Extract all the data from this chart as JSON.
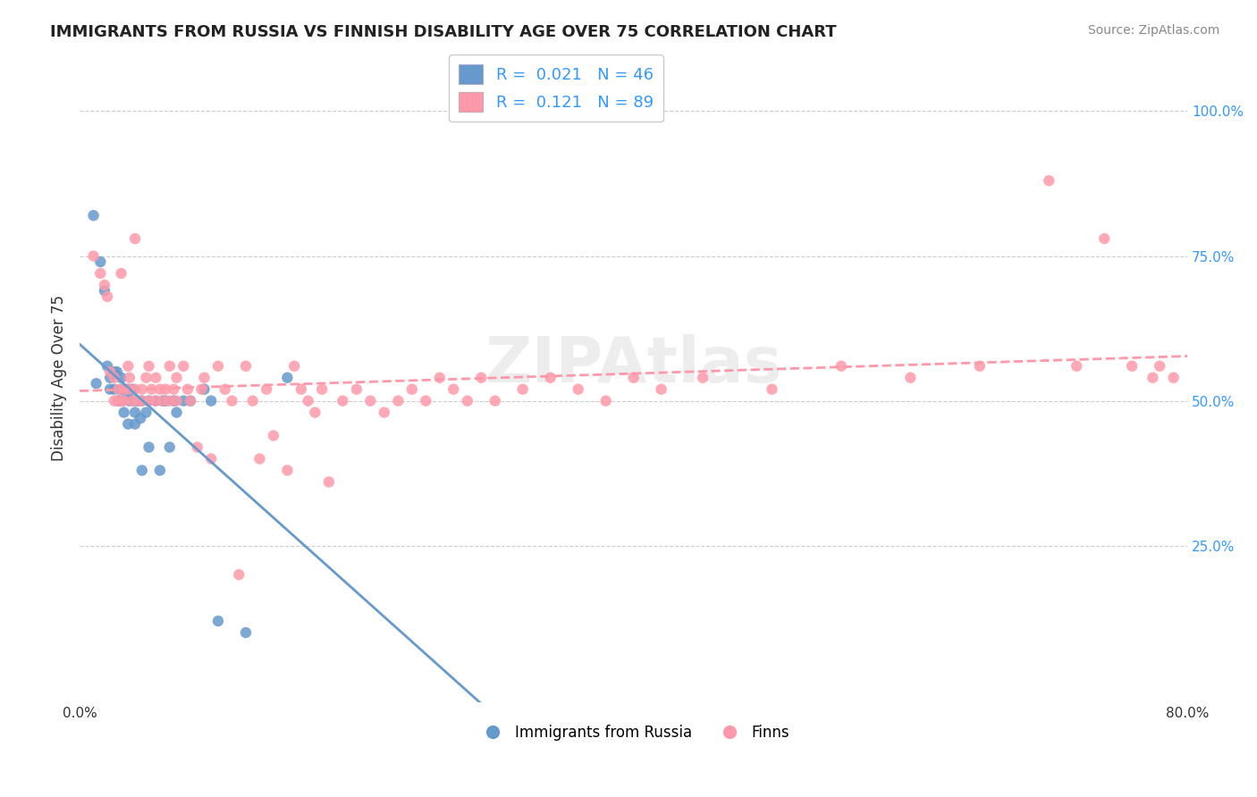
{
  "title": "IMMIGRANTS FROM RUSSIA VS FINNISH DISABILITY AGE OVER 75 CORRELATION CHART",
  "source": "Source: ZipAtlas.com",
  "xlabel": "",
  "ylabel": "Disability Age Over 75",
  "xlim": [
    0.0,
    0.8
  ],
  "ylim": [
    0.0,
    1.1
  ],
  "xtick_labels": [
    "0.0%",
    "80.0%"
  ],
  "ytick_labels": [
    "25.0%",
    "50.0%",
    "75.0%",
    "100.0%"
  ],
  "ytick_positions": [
    0.25,
    0.5,
    0.75,
    1.0
  ],
  "watermark": "ZIPAtlas",
  "legend_r1": "R =  0.021   N = 46",
  "legend_r2": "R =  0.121   N = 89",
  "color_blue": "#6699CC",
  "color_pink": "#FF99AA",
  "color_blue_line": "#6699CC",
  "color_pink_line": "#FF99AA",
  "background_color": "#FFFFFF",
  "grid_color": "#CCCCCC",
  "russia_x": [
    0.01,
    0.012,
    0.015,
    0.018,
    0.02,
    0.022,
    0.022,
    0.025,
    0.025,
    0.027,
    0.028,
    0.028,
    0.03,
    0.03,
    0.03,
    0.032,
    0.032,
    0.035,
    0.035,
    0.035,
    0.036,
    0.038,
    0.04,
    0.04,
    0.04,
    0.042,
    0.044,
    0.045,
    0.045,
    0.048,
    0.05,
    0.05,
    0.055,
    0.058,
    0.06,
    0.062,
    0.065,
    0.068,
    0.07,
    0.075,
    0.08,
    0.09,
    0.095,
    0.1,
    0.12,
    0.15
  ],
  "russia_y": [
    0.82,
    0.53,
    0.74,
    0.69,
    0.56,
    0.54,
    0.52,
    0.55,
    0.52,
    0.55,
    0.5,
    0.5,
    0.54,
    0.52,
    0.5,
    0.52,
    0.48,
    0.51,
    0.52,
    0.46,
    0.5,
    0.52,
    0.5,
    0.48,
    0.46,
    0.5,
    0.47,
    0.5,
    0.38,
    0.48,
    0.5,
    0.42,
    0.5,
    0.38,
    0.5,
    0.5,
    0.42,
    0.5,
    0.48,
    0.5,
    0.5,
    0.52,
    0.5,
    0.12,
    0.1,
    0.54
  ],
  "finns_x": [
    0.01,
    0.015,
    0.018,
    0.02,
    0.022,
    0.025,
    0.025,
    0.028,
    0.028,
    0.03,
    0.03,
    0.032,
    0.032,
    0.035,
    0.035,
    0.036,
    0.038,
    0.04,
    0.04,
    0.042,
    0.045,
    0.045,
    0.048,
    0.05,
    0.05,
    0.052,
    0.055,
    0.055,
    0.058,
    0.06,
    0.062,
    0.065,
    0.065,
    0.068,
    0.07,
    0.07,
    0.075,
    0.078,
    0.08,
    0.085,
    0.088,
    0.09,
    0.095,
    0.1,
    0.105,
    0.11,
    0.115,
    0.12,
    0.125,
    0.13,
    0.135,
    0.14,
    0.15,
    0.155,
    0.16,
    0.165,
    0.17,
    0.175,
    0.18,
    0.19,
    0.2,
    0.21,
    0.22,
    0.23,
    0.24,
    0.25,
    0.26,
    0.27,
    0.28,
    0.29,
    0.3,
    0.32,
    0.34,
    0.36,
    0.38,
    0.4,
    0.42,
    0.45,
    0.5,
    0.55,
    0.6,
    0.65,
    0.7,
    0.72,
    0.74,
    0.76,
    0.775,
    0.78,
    0.79
  ],
  "finns_y": [
    0.75,
    0.72,
    0.7,
    0.68,
    0.55,
    0.54,
    0.5,
    0.52,
    0.5,
    0.72,
    0.5,
    0.52,
    0.5,
    0.56,
    0.52,
    0.54,
    0.5,
    0.52,
    0.78,
    0.5,
    0.52,
    0.5,
    0.54,
    0.56,
    0.5,
    0.52,
    0.54,
    0.5,
    0.52,
    0.5,
    0.52,
    0.56,
    0.5,
    0.52,
    0.54,
    0.5,
    0.56,
    0.52,
    0.5,
    0.42,
    0.52,
    0.54,
    0.4,
    0.56,
    0.52,
    0.5,
    0.2,
    0.56,
    0.5,
    0.4,
    0.52,
    0.44,
    0.38,
    0.56,
    0.52,
    0.5,
    0.48,
    0.52,
    0.36,
    0.5,
    0.52,
    0.5,
    0.48,
    0.5,
    0.52,
    0.5,
    0.54,
    0.52,
    0.5,
    0.54,
    0.5,
    0.52,
    0.54,
    0.52,
    0.5,
    0.54,
    0.52,
    0.54,
    0.52,
    0.56,
    0.54,
    0.56,
    0.88,
    0.56,
    0.78,
    0.56,
    0.54,
    0.56,
    0.54
  ]
}
